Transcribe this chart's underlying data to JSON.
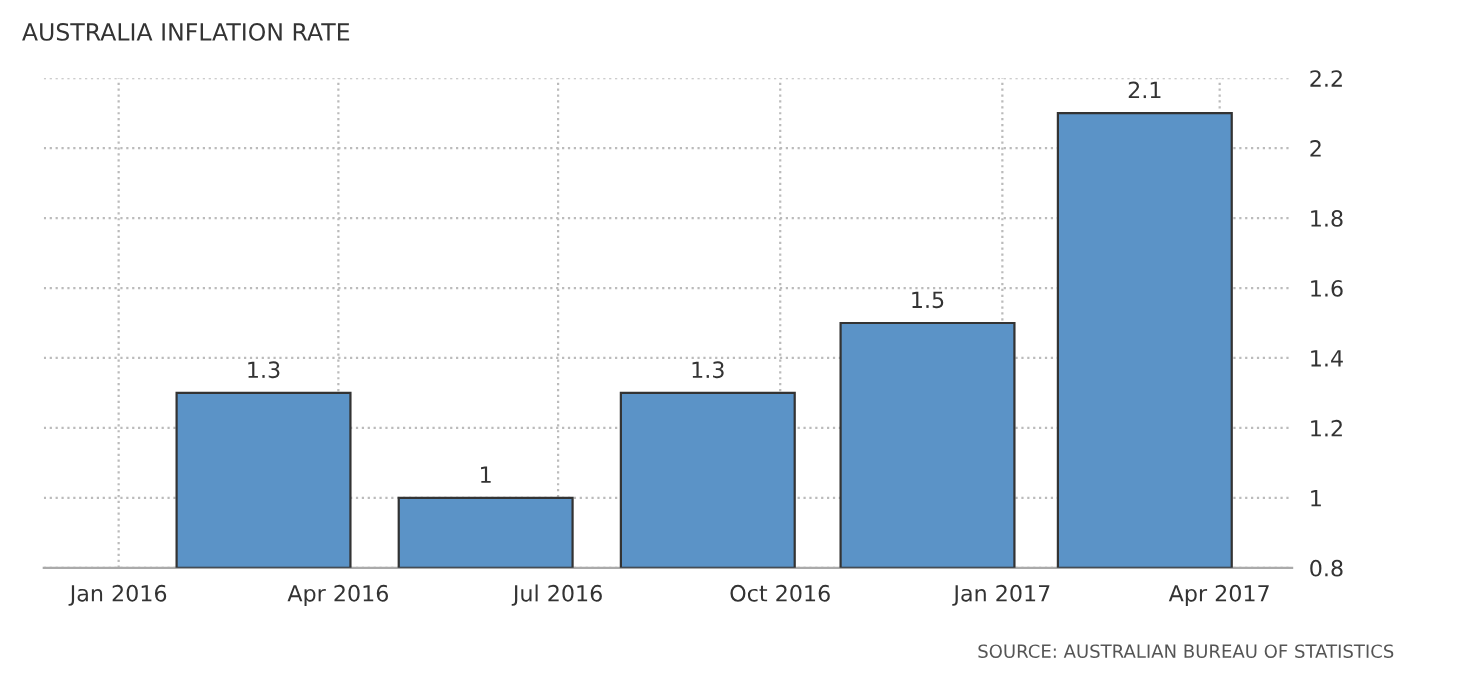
{
  "chart_data": {
    "type": "bar",
    "title": "AUSTRALIA INFLATION RATE",
    "x": [
      "2016-03",
      "2016-06",
      "2016-09",
      "2016-12",
      "2017-03"
    ],
    "values": [
      1.3,
      1,
      1.3,
      1.5,
      2.1
    ],
    "color": "#5b93c7",
    "data_labels": true,
    "xlim": [
      "2015-12",
      "2017-05"
    ],
    "xticks": [
      {
        "value": "2016-01",
        "label": "Jan 2016"
      },
      {
        "value": "2016-04",
        "label": "Apr 2016"
      },
      {
        "value": "2016-07",
        "label": "Jul 2016"
      },
      {
        "value": "2016-10",
        "label": "Oct 2016"
      },
      {
        "value": "2017-01",
        "label": "Jan 2017"
      },
      {
        "value": "2017-04",
        "label": "Apr 2017"
      }
    ],
    "ylim": [
      0.8,
      2.2
    ],
    "yticks": [
      0.8,
      1,
      1.2,
      1.4,
      1.6,
      1.8,
      2,
      2.2
    ],
    "grid": true,
    "annotations": [
      "SOURCE: AUSTRALIAN BUREAU OF STATISTICS"
    ]
  }
}
